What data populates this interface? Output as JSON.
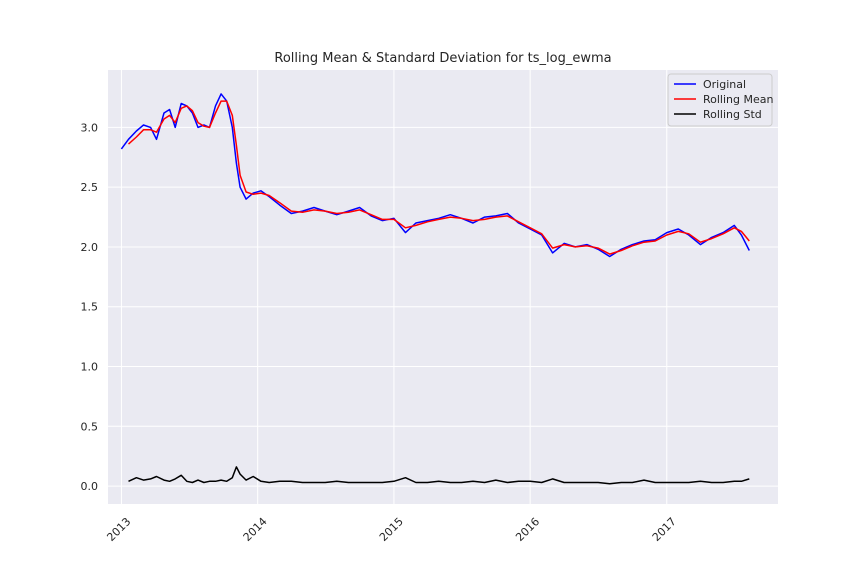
{
  "chart_data": {
    "type": "line",
    "title": "Rolling Mean & Standard Deviation for ts_log_ewma",
    "xlabel": "",
    "ylabel": "",
    "x_ticks": [
      "2013",
      "2014",
      "2015",
      "2016",
      "2017"
    ],
    "y_ticks": [
      "0.0",
      "0.5",
      "1.0",
      "1.5",
      "2.0",
      "2.5",
      "3.0"
    ],
    "xlim": [
      "2012-11-26",
      "2017-10-26"
    ],
    "ylim": [
      -0.15,
      3.48
    ],
    "grid": true,
    "legend_position": "top-right",
    "series": [
      {
        "name": "Original",
        "color": "#0000ff",
        "points": [
          [
            "2013-01-01",
            2.82
          ],
          [
            "2013-01-20",
            2.9
          ],
          [
            "2013-02-10",
            2.97
          ],
          [
            "2013-03-01",
            3.02
          ],
          [
            "2013-03-20",
            3.0
          ],
          [
            "2013-04-05",
            2.9
          ],
          [
            "2013-04-25",
            3.12
          ],
          [
            "2013-05-10",
            3.15
          ],
          [
            "2013-05-25",
            3.0
          ],
          [
            "2013-06-10",
            3.2
          ],
          [
            "2013-06-25",
            3.18
          ],
          [
            "2013-07-10",
            3.12
          ],
          [
            "2013-07-25",
            3.0
          ],
          [
            "2013-08-10",
            3.02
          ],
          [
            "2013-08-25",
            3.0
          ],
          [
            "2013-09-10",
            3.18
          ],
          [
            "2013-09-25",
            3.28
          ],
          [
            "2013-10-10",
            3.22
          ],
          [
            "2013-10-25",
            3.0
          ],
          [
            "2013-11-05",
            2.7
          ],
          [
            "2013-11-15",
            2.5
          ],
          [
            "2013-12-01",
            2.4
          ],
          [
            "2013-12-20",
            2.45
          ],
          [
            "2014-01-10",
            2.47
          ],
          [
            "2014-02-01",
            2.42
          ],
          [
            "2014-03-01",
            2.35
          ],
          [
            "2014-04-01",
            2.28
          ],
          [
            "2014-05-01",
            2.3
          ],
          [
            "2014-06-01",
            2.33
          ],
          [
            "2014-07-01",
            2.3
          ],
          [
            "2014-08-01",
            2.27
          ],
          [
            "2014-09-01",
            2.3
          ],
          [
            "2014-10-01",
            2.33
          ],
          [
            "2014-11-01",
            2.26
          ],
          [
            "2014-12-01",
            2.22
          ],
          [
            "2015-01-01",
            2.24
          ],
          [
            "2015-02-01",
            2.12
          ],
          [
            "2015-03-01",
            2.2
          ],
          [
            "2015-04-01",
            2.22
          ],
          [
            "2015-05-01",
            2.24
          ],
          [
            "2015-06-01",
            2.27
          ],
          [
            "2015-07-01",
            2.24
          ],
          [
            "2015-08-01",
            2.2
          ],
          [
            "2015-09-01",
            2.25
          ],
          [
            "2015-10-01",
            2.26
          ],
          [
            "2015-11-01",
            2.28
          ],
          [
            "2015-12-01",
            2.2
          ],
          [
            "2016-01-01",
            2.15
          ],
          [
            "2016-02-01",
            2.1
          ],
          [
            "2016-03-01",
            1.95
          ],
          [
            "2016-04-01",
            2.03
          ],
          [
            "2016-05-01",
            2.0
          ],
          [
            "2016-06-01",
            2.02
          ],
          [
            "2016-07-01",
            1.98
          ],
          [
            "2016-08-01",
            1.92
          ],
          [
            "2016-09-01",
            1.98
          ],
          [
            "2016-10-01",
            2.02
          ],
          [
            "2016-11-01",
            2.05
          ],
          [
            "2016-12-01",
            2.06
          ],
          [
            "2017-01-01",
            2.12
          ],
          [
            "2017-02-01",
            2.15
          ],
          [
            "2017-03-01",
            2.1
          ],
          [
            "2017-04-01",
            2.02
          ],
          [
            "2017-05-01",
            2.08
          ],
          [
            "2017-06-01",
            2.12
          ],
          [
            "2017-07-01",
            2.18
          ],
          [
            "2017-07-20",
            2.1
          ],
          [
            "2017-08-10",
            1.97
          ]
        ]
      },
      {
        "name": "Rolling Mean",
        "color": "#ff0000",
        "points": [
          [
            "2013-01-20",
            2.86
          ],
          [
            "2013-02-10",
            2.92
          ],
          [
            "2013-03-01",
            2.98
          ],
          [
            "2013-03-20",
            2.98
          ],
          [
            "2013-04-05",
            2.96
          ],
          [
            "2013-04-25",
            3.07
          ],
          [
            "2013-05-10",
            3.1
          ],
          [
            "2013-05-25",
            3.04
          ],
          [
            "2013-06-10",
            3.16
          ],
          [
            "2013-06-25",
            3.18
          ],
          [
            "2013-07-10",
            3.14
          ],
          [
            "2013-07-25",
            3.04
          ],
          [
            "2013-08-10",
            3.01
          ],
          [
            "2013-08-25",
            3.0
          ],
          [
            "2013-09-10",
            3.12
          ],
          [
            "2013-09-25",
            3.22
          ],
          [
            "2013-10-10",
            3.22
          ],
          [
            "2013-10-25",
            3.1
          ],
          [
            "2013-11-05",
            2.85
          ],
          [
            "2013-11-15",
            2.6
          ],
          [
            "2013-12-01",
            2.46
          ],
          [
            "2013-12-20",
            2.44
          ],
          [
            "2014-01-10",
            2.45
          ],
          [
            "2014-02-01",
            2.43
          ],
          [
            "2014-03-01",
            2.37
          ],
          [
            "2014-04-01",
            2.3
          ],
          [
            "2014-05-01",
            2.29
          ],
          [
            "2014-06-01",
            2.31
          ],
          [
            "2014-07-01",
            2.3
          ],
          [
            "2014-08-01",
            2.28
          ],
          [
            "2014-09-01",
            2.29
          ],
          [
            "2014-10-01",
            2.31
          ],
          [
            "2014-11-01",
            2.27
          ],
          [
            "2014-12-01",
            2.23
          ],
          [
            "2015-01-01",
            2.23
          ],
          [
            "2015-02-01",
            2.16
          ],
          [
            "2015-03-01",
            2.18
          ],
          [
            "2015-04-01",
            2.21
          ],
          [
            "2015-05-01",
            2.23
          ],
          [
            "2015-06-01",
            2.25
          ],
          [
            "2015-07-01",
            2.24
          ],
          [
            "2015-08-01",
            2.22
          ],
          [
            "2015-09-01",
            2.23
          ],
          [
            "2015-10-01",
            2.25
          ],
          [
            "2015-11-01",
            2.26
          ],
          [
            "2015-12-01",
            2.21
          ],
          [
            "2016-01-01",
            2.16
          ],
          [
            "2016-02-01",
            2.11
          ],
          [
            "2016-03-01",
            1.99
          ],
          [
            "2016-04-01",
            2.02
          ],
          [
            "2016-05-01",
            2.0
          ],
          [
            "2016-06-01",
            2.01
          ],
          [
            "2016-07-01",
            1.99
          ],
          [
            "2016-08-01",
            1.94
          ],
          [
            "2016-09-01",
            1.97
          ],
          [
            "2016-10-01",
            2.01
          ],
          [
            "2016-11-01",
            2.04
          ],
          [
            "2016-12-01",
            2.05
          ],
          [
            "2017-01-01",
            2.1
          ],
          [
            "2017-02-01",
            2.13
          ],
          [
            "2017-03-01",
            2.11
          ],
          [
            "2017-04-01",
            2.04
          ],
          [
            "2017-05-01",
            2.07
          ],
          [
            "2017-06-01",
            2.11
          ],
          [
            "2017-07-01",
            2.16
          ],
          [
            "2017-07-20",
            2.13
          ],
          [
            "2017-08-10",
            2.05
          ]
        ]
      },
      {
        "name": "Rolling Std",
        "color": "#000000",
        "points": [
          [
            "2013-01-20",
            0.04
          ],
          [
            "2013-02-10",
            0.07
          ],
          [
            "2013-03-01",
            0.05
          ],
          [
            "2013-03-20",
            0.06
          ],
          [
            "2013-04-05",
            0.08
          ],
          [
            "2013-04-25",
            0.05
          ],
          [
            "2013-05-10",
            0.04
          ],
          [
            "2013-05-25",
            0.06
          ],
          [
            "2013-06-10",
            0.09
          ],
          [
            "2013-06-25",
            0.04
          ],
          [
            "2013-07-10",
            0.03
          ],
          [
            "2013-07-25",
            0.05
          ],
          [
            "2013-08-10",
            0.03
          ],
          [
            "2013-08-25",
            0.04
          ],
          [
            "2013-09-10",
            0.04
          ],
          [
            "2013-09-25",
            0.05
          ],
          [
            "2013-10-10",
            0.04
          ],
          [
            "2013-10-25",
            0.07
          ],
          [
            "2013-11-05",
            0.16
          ],
          [
            "2013-11-15",
            0.1
          ],
          [
            "2013-12-01",
            0.05
          ],
          [
            "2013-12-20",
            0.08
          ],
          [
            "2014-01-10",
            0.04
          ],
          [
            "2014-02-01",
            0.03
          ],
          [
            "2014-03-01",
            0.04
          ],
          [
            "2014-04-01",
            0.04
          ],
          [
            "2014-05-01",
            0.03
          ],
          [
            "2014-06-01",
            0.03
          ],
          [
            "2014-07-01",
            0.03
          ],
          [
            "2014-08-01",
            0.04
          ],
          [
            "2014-09-01",
            0.03
          ],
          [
            "2014-10-01",
            0.03
          ],
          [
            "2014-11-01",
            0.03
          ],
          [
            "2014-12-01",
            0.03
          ],
          [
            "2015-01-01",
            0.04
          ],
          [
            "2015-02-01",
            0.07
          ],
          [
            "2015-03-01",
            0.03
          ],
          [
            "2015-04-01",
            0.03
          ],
          [
            "2015-05-01",
            0.04
          ],
          [
            "2015-06-01",
            0.03
          ],
          [
            "2015-07-01",
            0.03
          ],
          [
            "2015-08-01",
            0.04
          ],
          [
            "2015-09-01",
            0.03
          ],
          [
            "2015-10-01",
            0.05
          ],
          [
            "2015-11-01",
            0.03
          ],
          [
            "2015-12-01",
            0.04
          ],
          [
            "2016-01-01",
            0.04
          ],
          [
            "2016-02-01",
            0.03
          ],
          [
            "2016-03-01",
            0.06
          ],
          [
            "2016-04-01",
            0.03
          ],
          [
            "2016-05-01",
            0.03
          ],
          [
            "2016-06-01",
            0.03
          ],
          [
            "2016-07-01",
            0.03
          ],
          [
            "2016-08-01",
            0.02
          ],
          [
            "2016-09-01",
            0.03
          ],
          [
            "2016-10-01",
            0.03
          ],
          [
            "2016-11-01",
            0.05
          ],
          [
            "2016-12-01",
            0.03
          ],
          [
            "2017-01-01",
            0.03
          ],
          [
            "2017-02-01",
            0.03
          ],
          [
            "2017-03-01",
            0.03
          ],
          [
            "2017-04-01",
            0.04
          ],
          [
            "2017-05-01",
            0.03
          ],
          [
            "2017-06-01",
            0.03
          ],
          [
            "2017-07-01",
            0.04
          ],
          [
            "2017-07-20",
            0.04
          ],
          [
            "2017-08-10",
            0.06
          ]
        ]
      }
    ]
  }
}
